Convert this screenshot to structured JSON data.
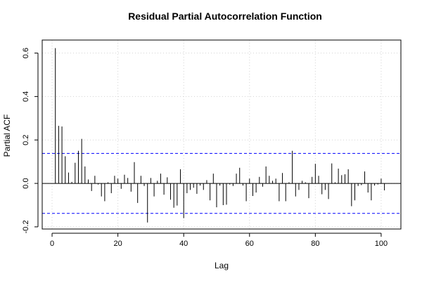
{
  "chart_data": {
    "type": "bar",
    "title": "Residual Partial Autocorrelation Function",
    "xlabel": "Lag",
    "ylabel": "Partial ACF",
    "xlim": [
      -3,
      106
    ],
    "ylim": [
      -0.21,
      0.66
    ],
    "x_ticks": [
      0,
      20,
      40,
      60,
      80,
      100
    ],
    "x_tick_labels": [
      "0",
      "20",
      "40",
      "60",
      "80",
      "100"
    ],
    "y_ticks": [
      -0.2,
      0.0,
      0.2,
      0.4,
      0.6
    ],
    "y_tick_labels": [
      "-0.2",
      "0.0",
      "0.2",
      "0.4",
      "0.6"
    ],
    "confidence_bounds": [
      0.138,
      -0.138
    ],
    "grid": true,
    "series": [
      {
        "x": [
          1,
          2,
          3,
          4,
          5,
          6,
          7,
          8,
          9,
          10,
          11,
          12,
          13,
          14,
          15,
          16,
          17,
          18,
          19,
          20,
          21,
          22,
          23,
          24,
          25,
          26,
          27,
          28,
          29,
          30,
          31,
          32,
          33,
          34,
          35,
          36,
          37,
          38,
          39,
          40,
          41,
          42,
          43,
          44,
          45,
          46,
          47,
          48,
          49,
          50,
          51,
          52,
          53,
          54,
          55,
          56,
          57,
          58,
          59,
          60,
          61,
          62,
          63,
          64,
          65,
          66,
          67,
          68,
          69,
          70,
          71,
          72,
          73,
          74,
          75,
          76,
          77,
          78,
          79,
          80,
          81,
          82,
          83,
          84,
          85,
          86,
          87,
          88,
          89,
          90,
          91,
          92,
          93,
          94,
          95,
          96,
          97,
          98,
          99,
          100,
          101
        ],
        "values": [
          0.623,
          0.265,
          0.262,
          0.125,
          0.05,
          0.007,
          0.095,
          0.15,
          0.205,
          0.078,
          0.018,
          -0.035,
          0.035,
          -0.005,
          -0.06,
          -0.082,
          0.005,
          -0.045,
          0.035,
          0.022,
          -0.025,
          0.04,
          0.025,
          -0.038,
          0.098,
          -0.09,
          0.035,
          -0.012,
          -0.18,
          0.025,
          -0.06,
          0.012,
          0.045,
          -0.052,
          0.028,
          -0.075,
          -0.112,
          -0.102,
          0.065,
          -0.16,
          -0.045,
          -0.03,
          -0.02,
          -0.048,
          -0.01,
          -0.03,
          0.015,
          -0.078,
          0.045,
          -0.11,
          -0.01,
          -0.1,
          -0.098,
          -0.005,
          -0.012,
          0.045,
          0.072,
          -0.01,
          -0.082,
          0.022,
          -0.058,
          -0.042,
          0.03,
          -0.015,
          0.078,
          0.035,
          0.012,
          0.022,
          -0.082,
          0.048,
          -0.082,
          0.005,
          0.15,
          -0.06,
          -0.03,
          0.012,
          0.005,
          -0.068,
          0.03,
          0.09,
          0.035,
          -0.05,
          -0.03,
          -0.072,
          0.092,
          0.005,
          0.068,
          0.038,
          0.042,
          0.065,
          -0.105,
          -0.078,
          -0.012,
          -0.008,
          0.055,
          -0.042,
          -0.078,
          -0.01,
          -0.005,
          0.022,
          -0.032
        ]
      }
    ]
  }
}
